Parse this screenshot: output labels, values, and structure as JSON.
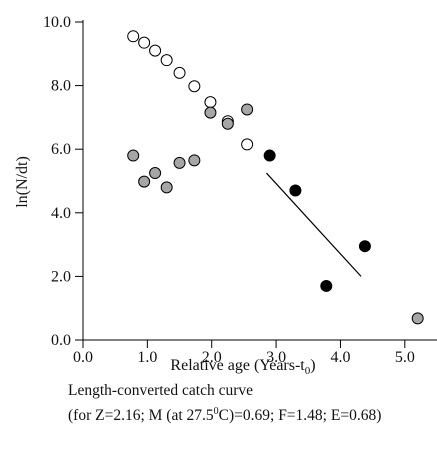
{
  "chart_data": {
    "type": "scatter",
    "xlabel": "Relative age (Years-t",
    "xlabel_sub": "0",
    "xlabel_close": ")",
    "ylabel": "ln(N/dt)",
    "xlim": [
      0.0,
      5.5
    ],
    "ylim": [
      0.0,
      10.0
    ],
    "x_ticks": [
      "0.0",
      "1.0",
      "2.0",
      "3.0",
      "4.0",
      "5.0"
    ],
    "x_tick_values": [
      0,
      1,
      2,
      3,
      4,
      5
    ],
    "y_ticks": [
      "0.0",
      "2.0",
      "4.0",
      "6.0",
      "8.0",
      "10.0"
    ],
    "y_tick_values": [
      0,
      2,
      4,
      6,
      8,
      10
    ],
    "grid": false,
    "series": [
      {
        "marker": "open-circle",
        "fill": "#ffffff",
        "stroke": "#000000",
        "points": [
          [
            0.78,
            9.55
          ],
          [
            0.95,
            9.35
          ],
          [
            1.12,
            9.1
          ],
          [
            1.3,
            8.8
          ],
          [
            1.5,
            8.4
          ],
          [
            1.73,
            7.98
          ],
          [
            1.98,
            7.48
          ],
          [
            2.25,
            6.88
          ],
          [
            2.55,
            6.15
          ]
        ]
      },
      {
        "marker": "gray-circle",
        "fill": "#a6a6a6",
        "stroke": "#000000",
        "points": [
          [
            0.78,
            5.8
          ],
          [
            0.95,
            4.98
          ],
          [
            1.12,
            5.25
          ],
          [
            1.3,
            4.8
          ],
          [
            1.5,
            5.57
          ],
          [
            1.73,
            5.65
          ],
          [
            1.98,
            7.15
          ],
          [
            2.25,
            6.8
          ],
          [
            2.55,
            7.25
          ]
        ]
      },
      {
        "marker": "filled-circle",
        "fill": "#000000",
        "stroke": "#000000",
        "points": [
          [
            2.9,
            5.8
          ],
          [
            3.3,
            4.7
          ],
          [
            3.78,
            1.7
          ],
          [
            4.38,
            2.95
          ]
        ]
      },
      {
        "marker": "gray-circle",
        "fill": "#a6a6a6",
        "stroke": "#000000",
        "points": [
          [
            5.2,
            0.68
          ]
        ]
      }
    ],
    "regression_line": {
      "from": [
        2.85,
        5.25
      ],
      "to": [
        4.32,
        2.0
      ],
      "color": "#000000"
    }
  },
  "caption": {
    "line1": "Length-converted catch curve",
    "line2_prefix": "(for Z=2.16; M (at 27.5",
    "line2_sup": "0",
    "line2_suffix": "C)=0.69; F=1.48; E=0.68)"
  }
}
